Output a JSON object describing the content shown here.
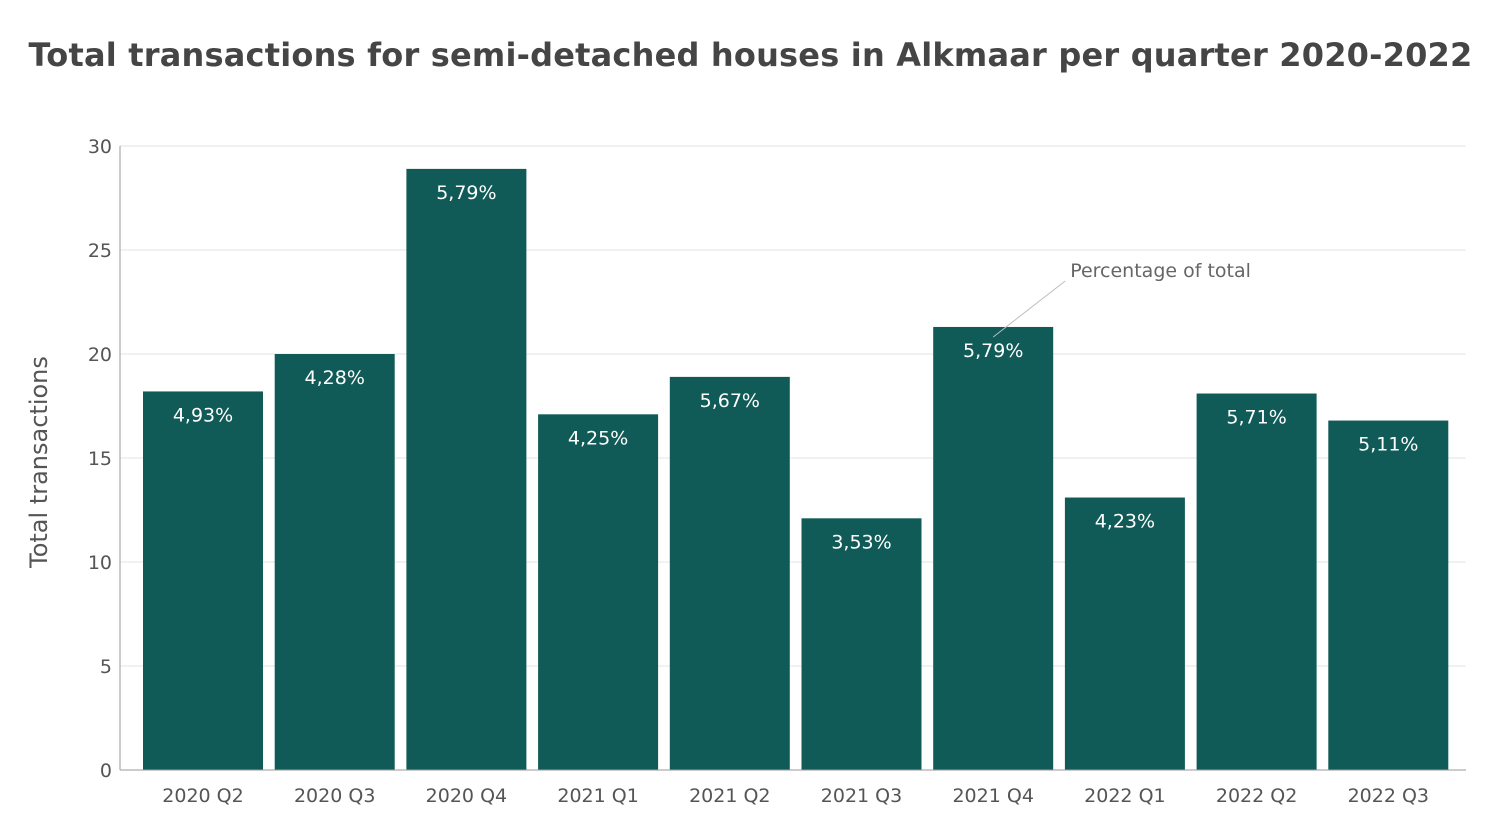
{
  "chart_data": {
    "type": "bar",
    "title": "Total transactions for semi-detached houses in Alkmaar per quarter 2020-2022",
    "xlabel": "",
    "ylabel": "Total transactions",
    "ylim": [
      0,
      30
    ],
    "yticks": [
      0,
      5,
      10,
      15,
      20,
      25,
      30
    ],
    "grid": true,
    "categories": [
      "2020 Q2",
      "2020 Q3",
      "2020 Q4",
      "2021 Q1",
      "2021 Q2",
      "2021 Q3",
      "2021 Q4",
      "2022 Q1",
      "2022 Q2",
      "2022 Q3"
    ],
    "values": [
      18.2,
      20.0,
      28.9,
      17.1,
      18.9,
      12.1,
      21.3,
      13.1,
      18.1,
      16.8
    ],
    "data_labels": [
      "4,93%",
      "4,28%",
      "5,79%",
      "4,25%",
      "5,67%",
      "3,53%",
      "5,79%",
      "4,23%",
      "5,71%",
      "5,11%"
    ],
    "annotation": {
      "text": "Percentage of total",
      "target_index": 6
    },
    "colors": {
      "bar": "#105b57",
      "grid": "#e3e3e3",
      "axis": "#9a9a9a"
    }
  }
}
